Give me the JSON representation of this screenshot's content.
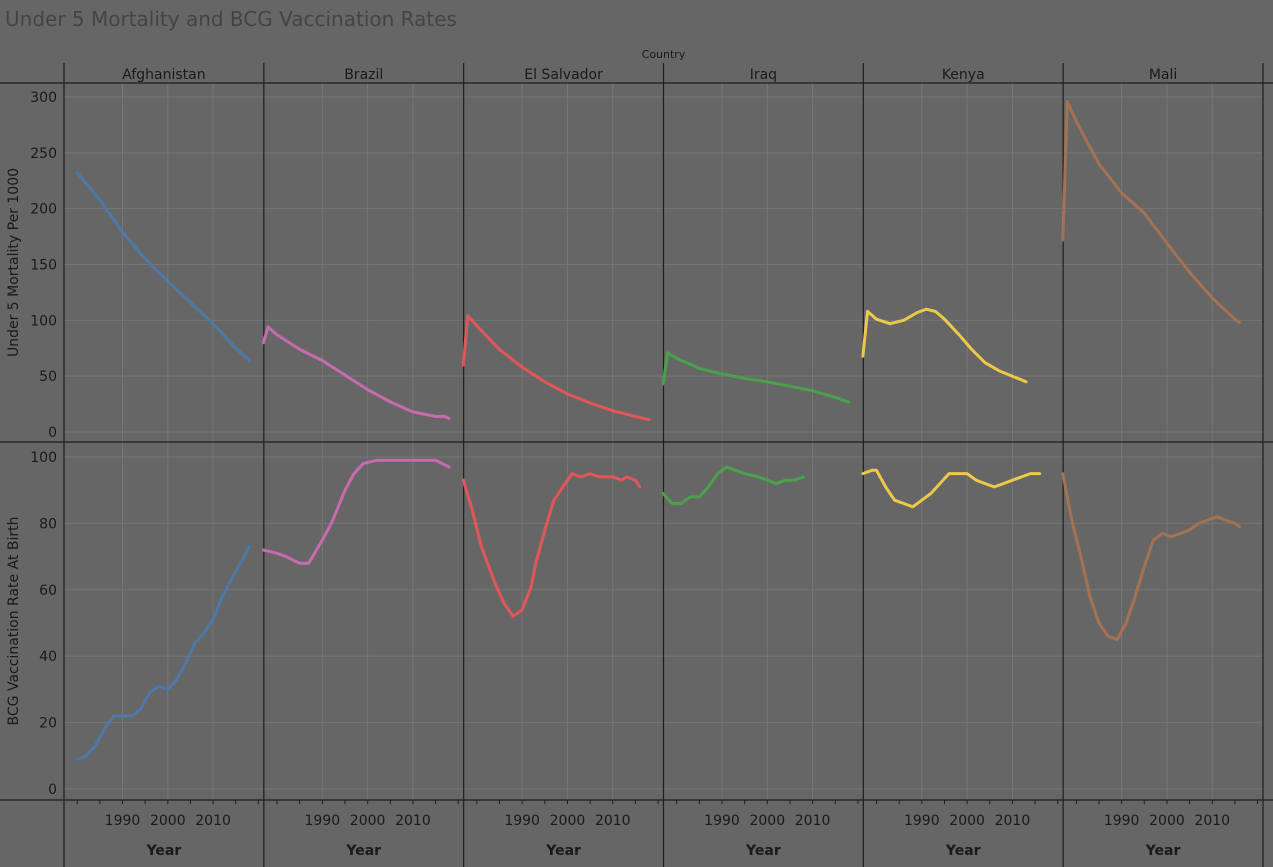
{
  "title": "Under 5 Mortality and BCG Vaccination Rates",
  "chart_data": {
    "type": "line",
    "layout": "small-multiples",
    "column_header": "Country",
    "countries": [
      "Afghanistan",
      "Brazil",
      "El Salvador",
      "Iraq",
      "Kenya",
      "Mali"
    ],
    "colors": {
      "Afghanistan": "#4e79a7",
      "Brazil": "#c76bb0",
      "El Salvador": "#e15759",
      "Iraq": "#4aa14a",
      "Kenya": "#edc948",
      "Mali": "#a47252"
    },
    "xlabel": "Year",
    "x_ticks": [
      1990,
      2000,
      2010
    ],
    "grid": true,
    "rows": [
      {
        "ylabel": "Under 5 Mortality Per 1000",
        "ylim": [
          0,
          300
        ],
        "y_ticks": [
          0,
          50,
          100,
          150,
          200,
          250,
          300
        ]
      },
      {
        "ylabel": "BCG Vaccination Rate At Birth",
        "ylim": [
          0,
          100
        ],
        "y_ticks": [
          0,
          20,
          40,
          60,
          80,
          100
        ]
      }
    ],
    "series": {
      "Afghanistan": {
        "mortality": [
          [
            1980,
            232
          ],
          [
            1985,
            208
          ],
          [
            1990,
            179
          ],
          [
            1995,
            155
          ],
          [
            2000,
            135
          ],
          [
            2005,
            116
          ],
          [
            2010,
            97
          ],
          [
            2015,
            75
          ],
          [
            2018,
            64
          ]
        ],
        "bcg": [
          [
            1980,
            9
          ],
          [
            1982,
            10
          ],
          [
            1984,
            13
          ],
          [
            1986,
            18
          ],
          [
            1988,
            22
          ],
          [
            1990,
            22
          ],
          [
            1992,
            22
          ],
          [
            1994,
            24
          ],
          [
            1996,
            29
          ],
          [
            1998,
            31
          ],
          [
            2000,
            30
          ],
          [
            2002,
            33
          ],
          [
            2004,
            38
          ],
          [
            2006,
            44
          ],
          [
            2008,
            47
          ],
          [
            2010,
            51
          ],
          [
            2012,
            58
          ],
          [
            2014,
            63
          ],
          [
            2016,
            68
          ],
          [
            2018,
            73
          ]
        ]
      },
      "Brazil": {
        "mortality": [
          [
            1977,
            80
          ],
          [
            1978,
            94
          ],
          [
            1980,
            87
          ],
          [
            1985,
            74
          ],
          [
            1990,
            64
          ],
          [
            1995,
            51
          ],
          [
            2000,
            38
          ],
          [
            2005,
            27
          ],
          [
            2010,
            18
          ],
          [
            2015,
            14
          ],
          [
            2017,
            14
          ],
          [
            2018,
            12
          ]
        ],
        "bcg": [
          [
            1977,
            72
          ],
          [
            1980,
            71
          ],
          [
            1982,
            70
          ],
          [
            1985,
            68
          ],
          [
            1987,
            68
          ],
          [
            1990,
            75
          ],
          [
            1992,
            80
          ],
          [
            1995,
            90
          ],
          [
            1997,
            95
          ],
          [
            1999,
            98
          ],
          [
            2002,
            99
          ],
          [
            2005,
            99
          ],
          [
            2010,
            99
          ],
          [
            2015,
            99
          ],
          [
            2018,
            97
          ]
        ]
      },
      "El Salvador": {
        "mortality": [
          [
            1977,
            60
          ],
          [
            1978,
            104
          ],
          [
            1980,
            95
          ],
          [
            1985,
            74
          ],
          [
            1990,
            58
          ],
          [
            1995,
            45
          ],
          [
            2000,
            34
          ],
          [
            2005,
            26
          ],
          [
            2010,
            19
          ],
          [
            2015,
            14
          ],
          [
            2018,
            11
          ]
        ],
        "bcg": [
          [
            1977,
            93
          ],
          [
            1979,
            84
          ],
          [
            1981,
            73
          ],
          [
            1984,
            62
          ],
          [
            1986,
            56
          ],
          [
            1988,
            52
          ],
          [
            1990,
            54
          ],
          [
            1992,
            61
          ],
          [
            1993,
            68
          ],
          [
            1995,
            78
          ],
          [
            1997,
            87
          ],
          [
            1999,
            91
          ],
          [
            2001,
            95
          ],
          [
            2003,
            94
          ],
          [
            2005,
            95
          ],
          [
            2007,
            94
          ],
          [
            2010,
            94
          ],
          [
            2012,
            93
          ],
          [
            2013,
            94
          ],
          [
            2015,
            93
          ],
          [
            2016,
            91
          ]
        ]
      },
      "Iraq": {
        "mortality": [
          [
            1977,
            43
          ],
          [
            1978,
            71
          ],
          [
            1980,
            66
          ],
          [
            1985,
            57
          ],
          [
            1990,
            52
          ],
          [
            1995,
            48
          ],
          [
            2000,
            45
          ],
          [
            2005,
            41
          ],
          [
            2010,
            37
          ],
          [
            2015,
            31
          ],
          [
            2018,
            27
          ]
        ],
        "bcg": [
          [
            1977,
            89
          ],
          [
            1979,
            86
          ],
          [
            1981,
            86
          ],
          [
            1983,
            88
          ],
          [
            1985,
            88
          ],
          [
            1987,
            91
          ],
          [
            1989,
            95
          ],
          [
            1991,
            97
          ],
          [
            1993,
            96
          ],
          [
            1995,
            95
          ],
          [
            1998,
            94
          ],
          [
            2000,
            93
          ],
          [
            2002,
            92
          ],
          [
            2004,
            93
          ],
          [
            2006,
            93
          ],
          [
            2008,
            94
          ]
        ]
      },
      "Kenya": {
        "mortality": [
          [
            1977,
            68
          ],
          [
            1978,
            108
          ],
          [
            1980,
            101
          ],
          [
            1983,
            97
          ],
          [
            1986,
            100
          ],
          [
            1989,
            107
          ],
          [
            1991,
            110
          ],
          [
            1993,
            108
          ],
          [
            1995,
            101
          ],
          [
            1998,
            88
          ],
          [
            2001,
            74
          ],
          [
            2004,
            62
          ],
          [
            2007,
            55
          ],
          [
            2010,
            50
          ],
          [
            2013,
            45
          ]
        ],
        "bcg": [
          [
            1977,
            95
          ],
          [
            1979,
            96
          ],
          [
            1980,
            96
          ],
          [
            1982,
            91
          ],
          [
            1984,
            87
          ],
          [
            1986,
            86
          ],
          [
            1988,
            85
          ],
          [
            1990,
            87
          ],
          [
            1992,
            89
          ],
          [
            1994,
            92
          ],
          [
            1996,
            95
          ],
          [
            1998,
            95
          ],
          [
            2000,
            95
          ],
          [
            2002,
            93
          ],
          [
            2004,
            92
          ],
          [
            2006,
            91
          ],
          [
            2008,
            92
          ],
          [
            2010,
            93
          ],
          [
            2012,
            94
          ],
          [
            2014,
            95
          ],
          [
            2016,
            95
          ]
        ]
      },
      "Mali": {
        "mortality": [
          [
            1977,
            172
          ],
          [
            1978,
            296
          ],
          [
            1980,
            278
          ],
          [
            1985,
            240
          ],
          [
            1990,
            214
          ],
          [
            1995,
            196
          ],
          [
            2000,
            169
          ],
          [
            2005,
            143
          ],
          [
            2010,
            120
          ],
          [
            2015,
            101
          ],
          [
            2016,
            98
          ]
        ],
        "bcg": [
          [
            1977,
            95
          ],
          [
            1979,
            81
          ],
          [
            1981,
            70
          ],
          [
            1983,
            58
          ],
          [
            1985,
            50
          ],
          [
            1987,
            46
          ],
          [
            1989,
            45
          ],
          [
            1991,
            50
          ],
          [
            1993,
            58
          ],
          [
            1995,
            67
          ],
          [
            1997,
            75
          ],
          [
            1999,
            77
          ],
          [
            2001,
            76
          ],
          [
            2003,
            77
          ],
          [
            2005,
            78
          ],
          [
            2007,
            80
          ],
          [
            2009,
            81
          ],
          [
            2011,
            82
          ],
          [
            2013,
            81
          ],
          [
            2015,
            80
          ],
          [
            2016,
            79
          ]
        ]
      }
    }
  }
}
